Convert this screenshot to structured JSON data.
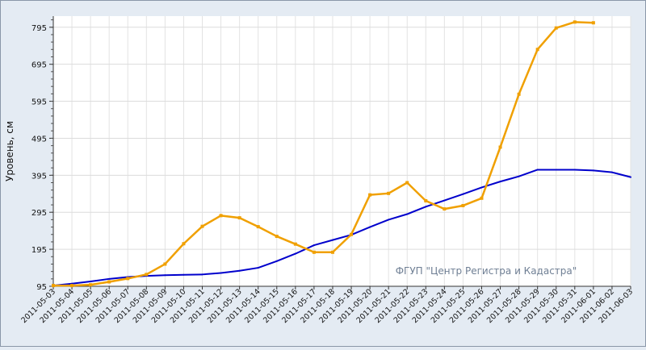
{
  "chart_data": {
    "type": "line",
    "title": "",
    "xlabel": "",
    "ylabel": "Уровень, см",
    "watermark": "ФГУП \"Центр Регистра и Кадастра\"",
    "ylim": [
      95,
      825
    ],
    "yticks": [
      "95",
      "195",
      "295",
      "395",
      "495",
      "595",
      "695",
      "795"
    ],
    "y_minor_step": 20,
    "grid": true,
    "x": [
      "2011-05-03",
      "2011-05-04",
      "2011-05-05",
      "2011-05-06",
      "2011-05-07",
      "2011-05-08",
      "2011-05-09",
      "2011-05-10",
      "2011-05-11",
      "2011-05-12",
      "2011-05-13",
      "2011-05-14",
      "2011-05-15",
      "2011-05-16",
      "2011-05-17",
      "2011-05-18",
      "2011-05-19",
      "2011-05-20",
      "2011-05-21",
      "2011-05-22",
      "2011-05-23",
      "2011-05-24",
      "2011-05-25",
      "2011-05-26",
      "2011-05-27",
      "2011-05-28",
      "2011-05-29",
      "2011-05-30",
      "2011-05-31",
      "2011-06-01",
      "2011-06-02",
      "2011-06-03"
    ],
    "series": [
      {
        "color": "#0000cc",
        "marker": "none",
        "values": [
          97,
          102,
          108,
          115,
          120,
          123,
          125,
          126,
          127,
          131,
          137,
          145,
          163,
          183,
          206,
          220,
          234,
          255,
          275,
          290,
          310,
          327,
          344,
          362,
          378,
          392,
          410,
          410,
          410,
          408,
          403,
          390
        ]
      },
      {
        "color": "#f0a000",
        "marker": "square",
        "values": [
          97,
          97,
          99,
          107,
          116,
          127,
          155,
          210,
          257,
          286,
          280,
          256,
          230,
          209,
          187,
          187,
          235,
          342,
          346,
          375,
          326,
          304,
          313,
          333,
          471,
          614,
          735,
          793,
          809,
          807,
          null,
          null
        ]
      }
    ]
  }
}
